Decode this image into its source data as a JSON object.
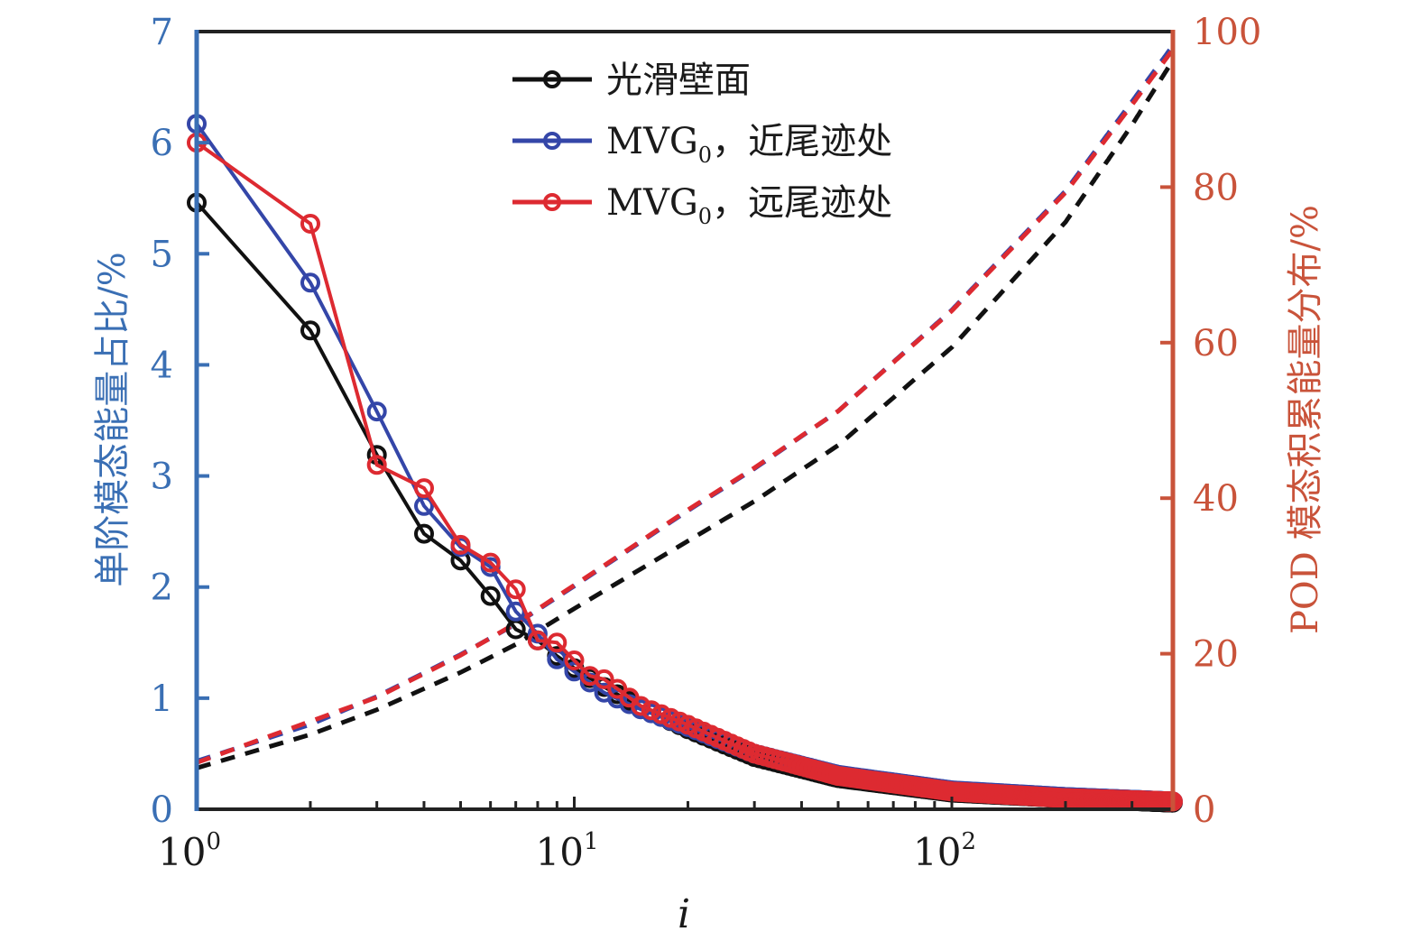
{
  "chart_data": {
    "type": "line",
    "title": "",
    "xlabel": "i",
    "xscale": "log",
    "xlim": [
      1,
      385
    ],
    "x_ticks": [
      {
        "base": "10",
        "exp": "0",
        "value": 1
      },
      {
        "base": "10",
        "exp": "1",
        "value": 10
      },
      {
        "base": "10",
        "exp": "2",
        "value": 100
      }
    ],
    "y_left": {
      "label": "单阶模态能量占比/%",
      "lim": [
        0,
        7
      ],
      "ticks": [
        "0",
        "1",
        "2",
        "3",
        "4",
        "5",
        "6",
        "7"
      ],
      "color": "#3a6fb4"
    },
    "y_right": {
      "label": "POD 模态积累能量分布/%",
      "lim": [
        0,
        100
      ],
      "ticks": [
        "0",
        "20",
        "40",
        "60",
        "80",
        "100"
      ],
      "color": "#c9533a"
    },
    "grid": false,
    "legend": {
      "position": "top-center",
      "entries": [
        {
          "series": "smooth",
          "text_main": "光滑壁面",
          "text_sub": "",
          "text_tail": ""
        },
        {
          "series": "near",
          "text_main": "MVG",
          "text_sub": "0",
          "text_tail": "，近尾迹处"
        },
        {
          "series": "far",
          "text_main": "MVG",
          "text_sub": "0",
          "text_tail": "，远尾迹处"
        }
      ]
    },
    "series": [
      {
        "name": "光滑壁面",
        "key": "smooth",
        "color": "#111111",
        "axis": "left",
        "style": "solid-circle-markers",
        "x": [
          1,
          2,
          3,
          4,
          5,
          6,
          7,
          8,
          9,
          10,
          12,
          15,
          20,
          30,
          50,
          100,
          200,
          385
        ],
        "values": [
          5.46,
          4.31,
          3.19,
          2.48,
          2.24,
          1.92,
          1.62,
          1.52,
          1.38,
          1.27,
          1.1,
          0.92,
          0.72,
          0.47,
          0.28,
          0.15,
          0.1,
          0.06
        ]
      },
      {
        "name": "MVG0，近尾迹处",
        "key": "near",
        "color": "#3446a8",
        "axis": "left",
        "style": "solid-circle-markers",
        "x": [
          1,
          2,
          3,
          4,
          5,
          6,
          7,
          8,
          9,
          10,
          12,
          15,
          20,
          30,
          50,
          100,
          200,
          385
        ],
        "values": [
          6.17,
          4.74,
          3.58,
          2.73,
          2.36,
          2.18,
          1.78,
          1.58,
          1.35,
          1.24,
          1.05,
          0.9,
          0.74,
          0.5,
          0.31,
          0.17,
          0.11,
          0.07
        ]
      },
      {
        "name": "MVG0，远尾迹处",
        "key": "far",
        "color": "#dd2a31",
        "axis": "left",
        "style": "solid-circle-markers",
        "x": [
          1,
          2,
          3,
          4,
          5,
          6,
          7,
          8,
          9,
          10,
          11,
          12,
          15,
          20,
          30,
          50,
          100,
          200,
          385
        ],
        "values": [
          6.0,
          5.27,
          3.1,
          2.89,
          2.38,
          2.22,
          1.98,
          1.52,
          1.5,
          1.34,
          1.2,
          1.17,
          0.93,
          0.76,
          0.5,
          0.3,
          0.16,
          0.1,
          0.07
        ]
      },
      {
        "name": "光滑壁面 累积能量",
        "key": "smooth-cum",
        "color": "#111111",
        "axis": "right",
        "style": "dashed",
        "x": [
          1,
          2,
          3,
          5,
          7,
          10,
          20,
          30,
          50,
          100,
          200,
          300,
          385
        ],
        "values": [
          5.3,
          9.6,
          12.8,
          17.6,
          21.2,
          25.8,
          34.5,
          39.6,
          46.8,
          59.4,
          75.5,
          88.0,
          96.3
        ]
      },
      {
        "name": "MVG0，近尾迹处 累积能量",
        "key": "near-cum",
        "color": "#3446a8",
        "axis": "right",
        "style": "dashed",
        "x": [
          1,
          2,
          3,
          5,
          7,
          10,
          20,
          30,
          50,
          100,
          200,
          300,
          385
        ],
        "values": [
          6.2,
          10.9,
          14.5,
          19.9,
          23.8,
          28.7,
          38.4,
          43.8,
          51.2,
          64.2,
          79.5,
          91.0,
          98.2
        ]
      },
      {
        "name": "MVG0，远尾迹处 累积能量",
        "key": "far-cum",
        "color": "#dd2a31",
        "axis": "right",
        "style": "dashed",
        "x": [
          1,
          2,
          3,
          5,
          7,
          10,
          20,
          30,
          50,
          100,
          200,
          300,
          385
        ],
        "values": [
          6.0,
          11.3,
          14.4,
          19.8,
          23.9,
          28.8,
          38.5,
          43.9,
          51.2,
          64.1,
          79.3,
          90.6,
          97.7
        ]
      }
    ]
  }
}
